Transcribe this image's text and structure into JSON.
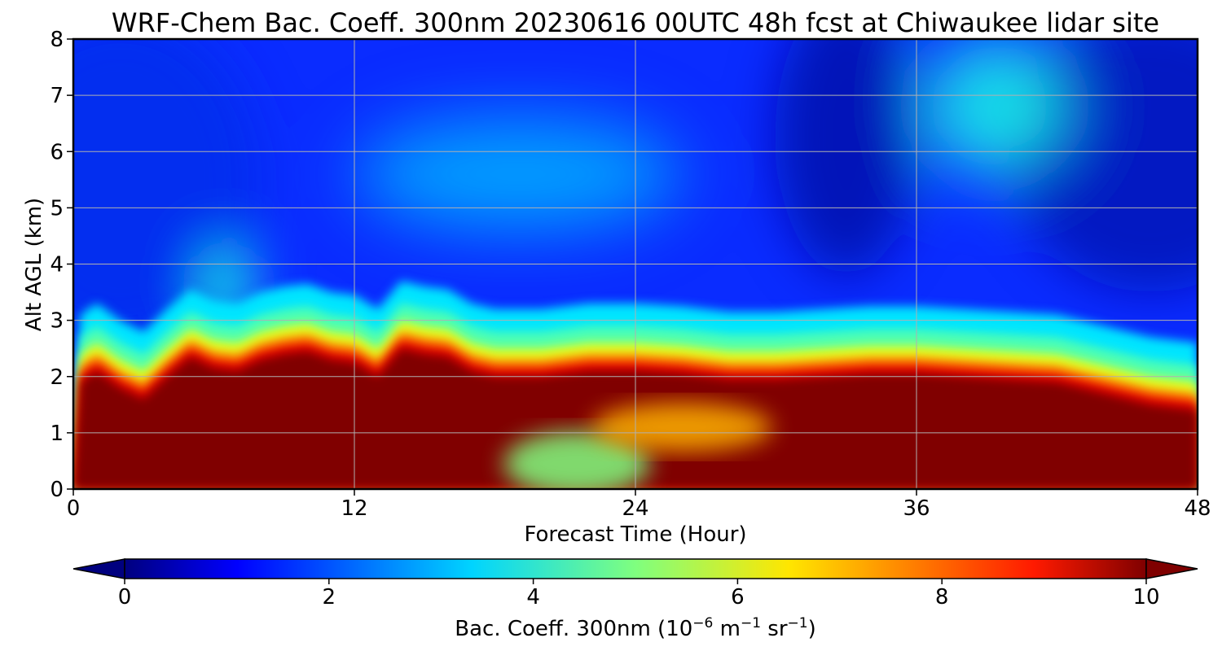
{
  "chart_data": {
    "type": "heatmap",
    "title": "WRF-Chem Bac. Coeff. 300nm  20230616 00UTC 48h fcst at Chiwaukee lidar site",
    "xlabel": "Forecast Time (Hour)",
    "ylabel": "Alt AGL (km)",
    "xlim": [
      0,
      48
    ],
    "ylim": [
      0,
      8
    ],
    "xticks": [
      0,
      12,
      24,
      36,
      48
    ],
    "yticks": [
      0,
      1,
      2,
      3,
      4,
      5,
      6,
      7,
      8
    ],
    "grid": true,
    "colormap": "jet",
    "colorbar": {
      "label_main": "Bac. Coeff. 300nm  (10",
      "label_exp1": "−6",
      "label_mid": " m",
      "label_exp2": "−1",
      "label_mid2": " sr",
      "label_exp3": "−1",
      "label_end": ")",
      "range": [
        0,
        10
      ],
      "ticks": [
        0,
        2,
        4,
        6,
        8,
        10
      ],
      "extend": "both"
    },
    "boundary_layer_top_km": [
      [
        0.0,
        0.0
      ],
      [
        0.3,
        1.9
      ],
      [
        1.0,
        2.1
      ],
      [
        2.0,
        1.8
      ],
      [
        3.0,
        1.6
      ],
      [
        4.0,
        2.0
      ],
      [
        5.0,
        2.35
      ],
      [
        6.0,
        2.15
      ],
      [
        7.0,
        2.1
      ],
      [
        8.0,
        2.3
      ],
      [
        9.0,
        2.4
      ],
      [
        10.0,
        2.45
      ],
      [
        11.0,
        2.3
      ],
      [
        12.0,
        2.25
      ],
      [
        13.0,
        2.0
      ],
      [
        14.0,
        2.5
      ],
      [
        15.0,
        2.4
      ],
      [
        16.0,
        2.35
      ],
      [
        17.0,
        2.1
      ],
      [
        18.0,
        2.0
      ],
      [
        20.0,
        2.0
      ],
      [
        22.0,
        2.1
      ],
      [
        24.0,
        2.1
      ],
      [
        26.0,
        2.05
      ],
      [
        28.0,
        1.95
      ],
      [
        30.0,
        1.95
      ],
      [
        32.0,
        2.0
      ],
      [
        34.0,
        2.05
      ],
      [
        36.0,
        2.05
      ],
      [
        38.0,
        2.0
      ],
      [
        40.0,
        1.95
      ],
      [
        42.0,
        1.9
      ],
      [
        44.0,
        1.7
      ],
      [
        46.0,
        1.5
      ],
      [
        48.0,
        1.4
      ]
    ],
    "features": [
      {
        "kind": "clean_pocket",
        "center_hour": 21.5,
        "center_km": 0.45,
        "value": 5
      },
      {
        "kind": "clean_pocket",
        "center_hour": 26.0,
        "center_km": 1.1,
        "value": 7
      },
      {
        "kind": "elevated_layer",
        "center_hour": 39.5,
        "center_km": 6.8,
        "value": 4
      },
      {
        "kind": "elevated_layer",
        "center_hour": 19.0,
        "center_km": 5.6,
        "value": 3
      },
      {
        "kind": "plume",
        "center_hour": 6.5,
        "center_km": 3.6,
        "value": 4
      }
    ]
  }
}
